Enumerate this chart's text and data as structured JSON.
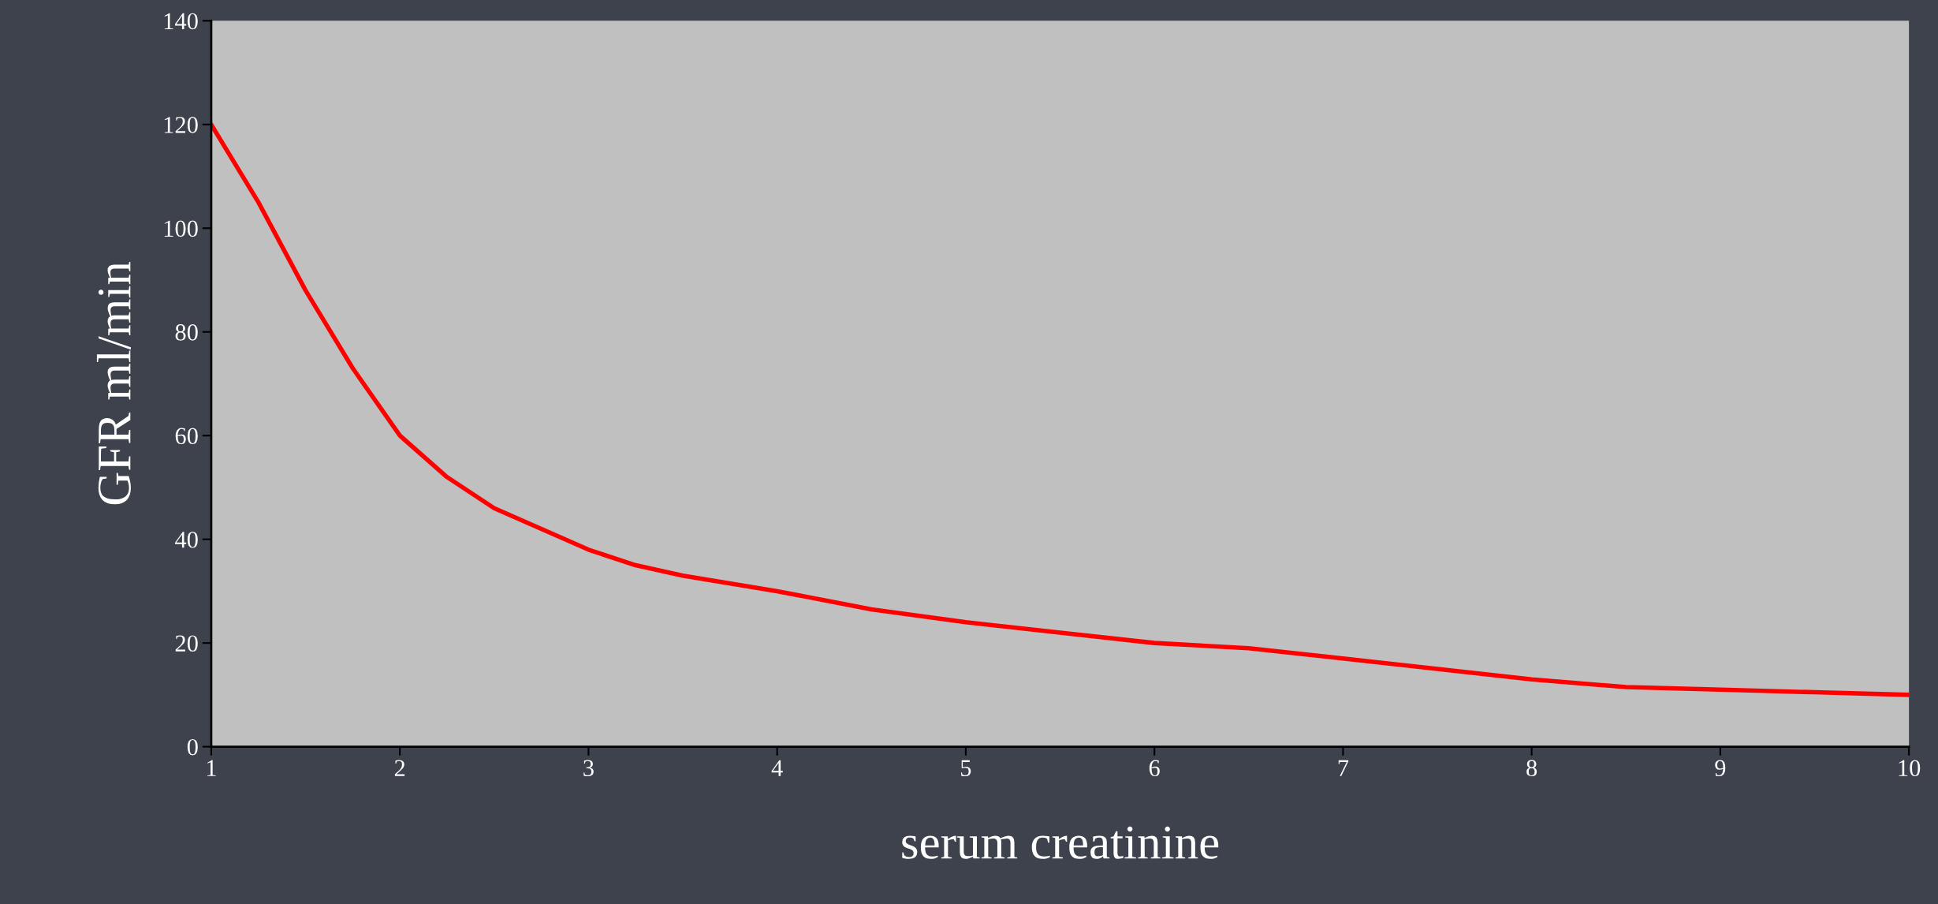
{
  "chart_data": {
    "type": "line",
    "xlabel": "serum creatinine",
    "ylabel": "GFR ml/min",
    "x": [
      1,
      1.25,
      1.5,
      1.75,
      2,
      2.25,
      2.5,
      2.75,
      3,
      3.25,
      3.5,
      4,
      4.5,
      5,
      5.5,
      6,
      6.5,
      7,
      7.5,
      8,
      8.5,
      9,
      9.5,
      10
    ],
    "series": [
      {
        "color": "#ff0000",
        "values": [
          120,
          105,
          88,
          73,
          60,
          52,
          46,
          42,
          38,
          35,
          33,
          30,
          26.5,
          24,
          22,
          20,
          19,
          17,
          15,
          13,
          11.5,
          11,
          10.5,
          10
        ]
      }
    ],
    "xlim": [
      1,
      10
    ],
    "xticks": [
      1,
      2,
      3,
      4,
      5,
      6,
      7,
      8,
      9,
      10
    ],
    "ylim": [
      0,
      140
    ],
    "yticks": [
      0,
      20,
      40,
      60,
      80,
      100,
      120,
      140
    ],
    "grid": false,
    "legend": false,
    "marker": "none",
    "line_style": "solid"
  }
}
